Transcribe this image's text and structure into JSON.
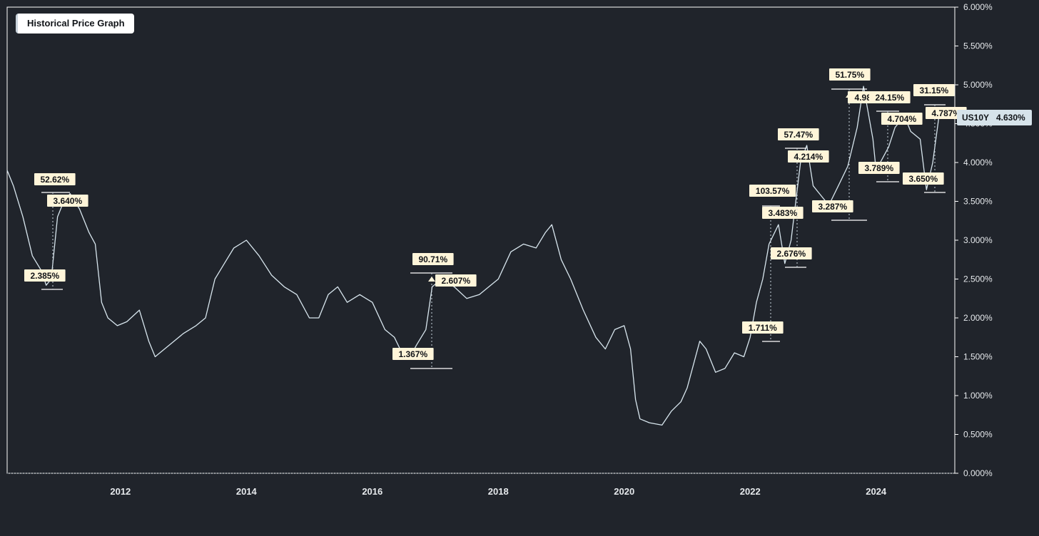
{
  "title": "Historical Price Graph",
  "chart_data": {
    "type": "line",
    "title": "Historical Price Graph",
    "symbol": "US10Y",
    "last_value_label": "4.630%",
    "last_value": 4.63,
    "ylim": [
      0,
      6
    ],
    "xlim": [
      2010.2,
      2025.25
    ],
    "y_ticks": [
      "0.000%",
      "0.500%",
      "1.000%",
      "1.500%",
      "2.000%",
      "2.500%",
      "3.000%",
      "3.500%",
      "4.000%",
      "4.500%",
      "5.000%",
      "5.500%",
      "6.000%"
    ],
    "x_ticks": [
      "2012",
      "2014",
      "2016",
      "2018",
      "2020",
      "2022",
      "2024"
    ],
    "series": [
      {
        "x": [
          2010.2,
          2010.3,
          2010.45,
          2010.6,
          2010.75,
          2010.82,
          2010.9,
          2011.0,
          2011.1,
          2011.2,
          2011.35,
          2011.5,
          2011.6,
          2011.7,
          2011.8,
          2011.95,
          2012.1,
          2012.3,
          2012.45,
          2012.55,
          2012.7,
          2012.85,
          2013.0,
          2013.2,
          2013.35,
          2013.5,
          2013.65,
          2013.8,
          2014.0,
          2014.2,
          2014.4,
          2014.6,
          2014.8,
          2015.0,
          2015.15,
          2015.3,
          2015.45,
          2015.6,
          2015.8,
          2016.0,
          2016.2,
          2016.35,
          2016.5,
          2016.6,
          2016.7,
          2016.85,
          2016.95,
          2017.1,
          2017.3,
          2017.5,
          2017.7,
          2017.85,
          2018.0,
          2018.2,
          2018.4,
          2018.6,
          2018.75,
          2018.85,
          2019.0,
          2019.15,
          2019.35,
          2019.55,
          2019.7,
          2019.85,
          2020.0,
          2020.1,
          2020.18,
          2020.25,
          2020.4,
          2020.6,
          2020.75,
          2020.9,
          2021.0,
          2021.1,
          2021.2,
          2021.3,
          2021.45,
          2021.6,
          2021.75,
          2021.9,
          2022.0,
          2022.1,
          2022.2,
          2022.3,
          2022.45,
          2022.55,
          2022.65,
          2022.8,
          2022.9,
          2023.0,
          2023.1,
          2023.25,
          2023.4,
          2023.55,
          2023.7,
          2023.8,
          2023.95,
          2024.0,
          2024.1,
          2024.2,
          2024.3,
          2024.45,
          2024.55,
          2024.7,
          2024.8,
          2024.9,
          2025.0,
          2025.1,
          2025.2
        ],
        "y": [
          3.9,
          3.7,
          3.3,
          2.8,
          2.6,
          2.42,
          2.5,
          3.3,
          3.5,
          3.6,
          3.4,
          3.1,
          2.95,
          2.2,
          2.0,
          1.9,
          1.95,
          2.1,
          1.7,
          1.5,
          1.6,
          1.7,
          1.8,
          1.9,
          2.0,
          2.5,
          2.7,
          2.9,
          3.0,
          2.8,
          2.55,
          2.4,
          2.3,
          2.0,
          2.0,
          2.3,
          2.4,
          2.2,
          2.3,
          2.2,
          1.85,
          1.75,
          1.5,
          1.5,
          1.65,
          1.85,
          2.4,
          2.5,
          2.4,
          2.25,
          2.3,
          2.4,
          2.5,
          2.85,
          2.95,
          2.9,
          3.1,
          3.2,
          2.75,
          2.5,
          2.1,
          1.75,
          1.6,
          1.85,
          1.9,
          1.6,
          0.95,
          0.7,
          0.65,
          0.62,
          0.8,
          0.92,
          1.1,
          1.4,
          1.7,
          1.6,
          1.3,
          1.35,
          1.55,
          1.5,
          1.75,
          2.2,
          2.5,
          2.95,
          3.2,
          2.7,
          3.0,
          4.0,
          4.22,
          3.7,
          3.6,
          3.45,
          3.7,
          3.95,
          4.45,
          4.98,
          4.3,
          3.9,
          4.05,
          4.2,
          4.45,
          4.6,
          4.4,
          4.3,
          3.65,
          4.0,
          4.6,
          4.7,
          4.63
        ]
      }
    ],
    "annotations": [
      {
        "pct": "52.62%",
        "high": "3.640%",
        "low": "2.385%"
      },
      {
        "pct": "90.71%",
        "high": "2.607%",
        "low": "1.367%"
      },
      {
        "pct": "103.57%",
        "high": "3.483%",
        "low": "1.711%"
      },
      {
        "pct": "57.47%",
        "high": "4.214%",
        "low": "2.676%"
      },
      {
        "pct": "51.75%",
        "high": "4.98",
        "low": "3.287%"
      },
      {
        "pct": "24.15%",
        "high": "4.704%",
        "low": "3.789%"
      },
      {
        "pct": "31.15%",
        "high": "4.787%",
        "low": "3.650%"
      }
    ],
    "colors": {
      "background": "#20242b",
      "line": "#d8e6ee",
      "annotation_fill": "#fff5d9",
      "last_value_tag": "#d6e3ea"
    }
  }
}
